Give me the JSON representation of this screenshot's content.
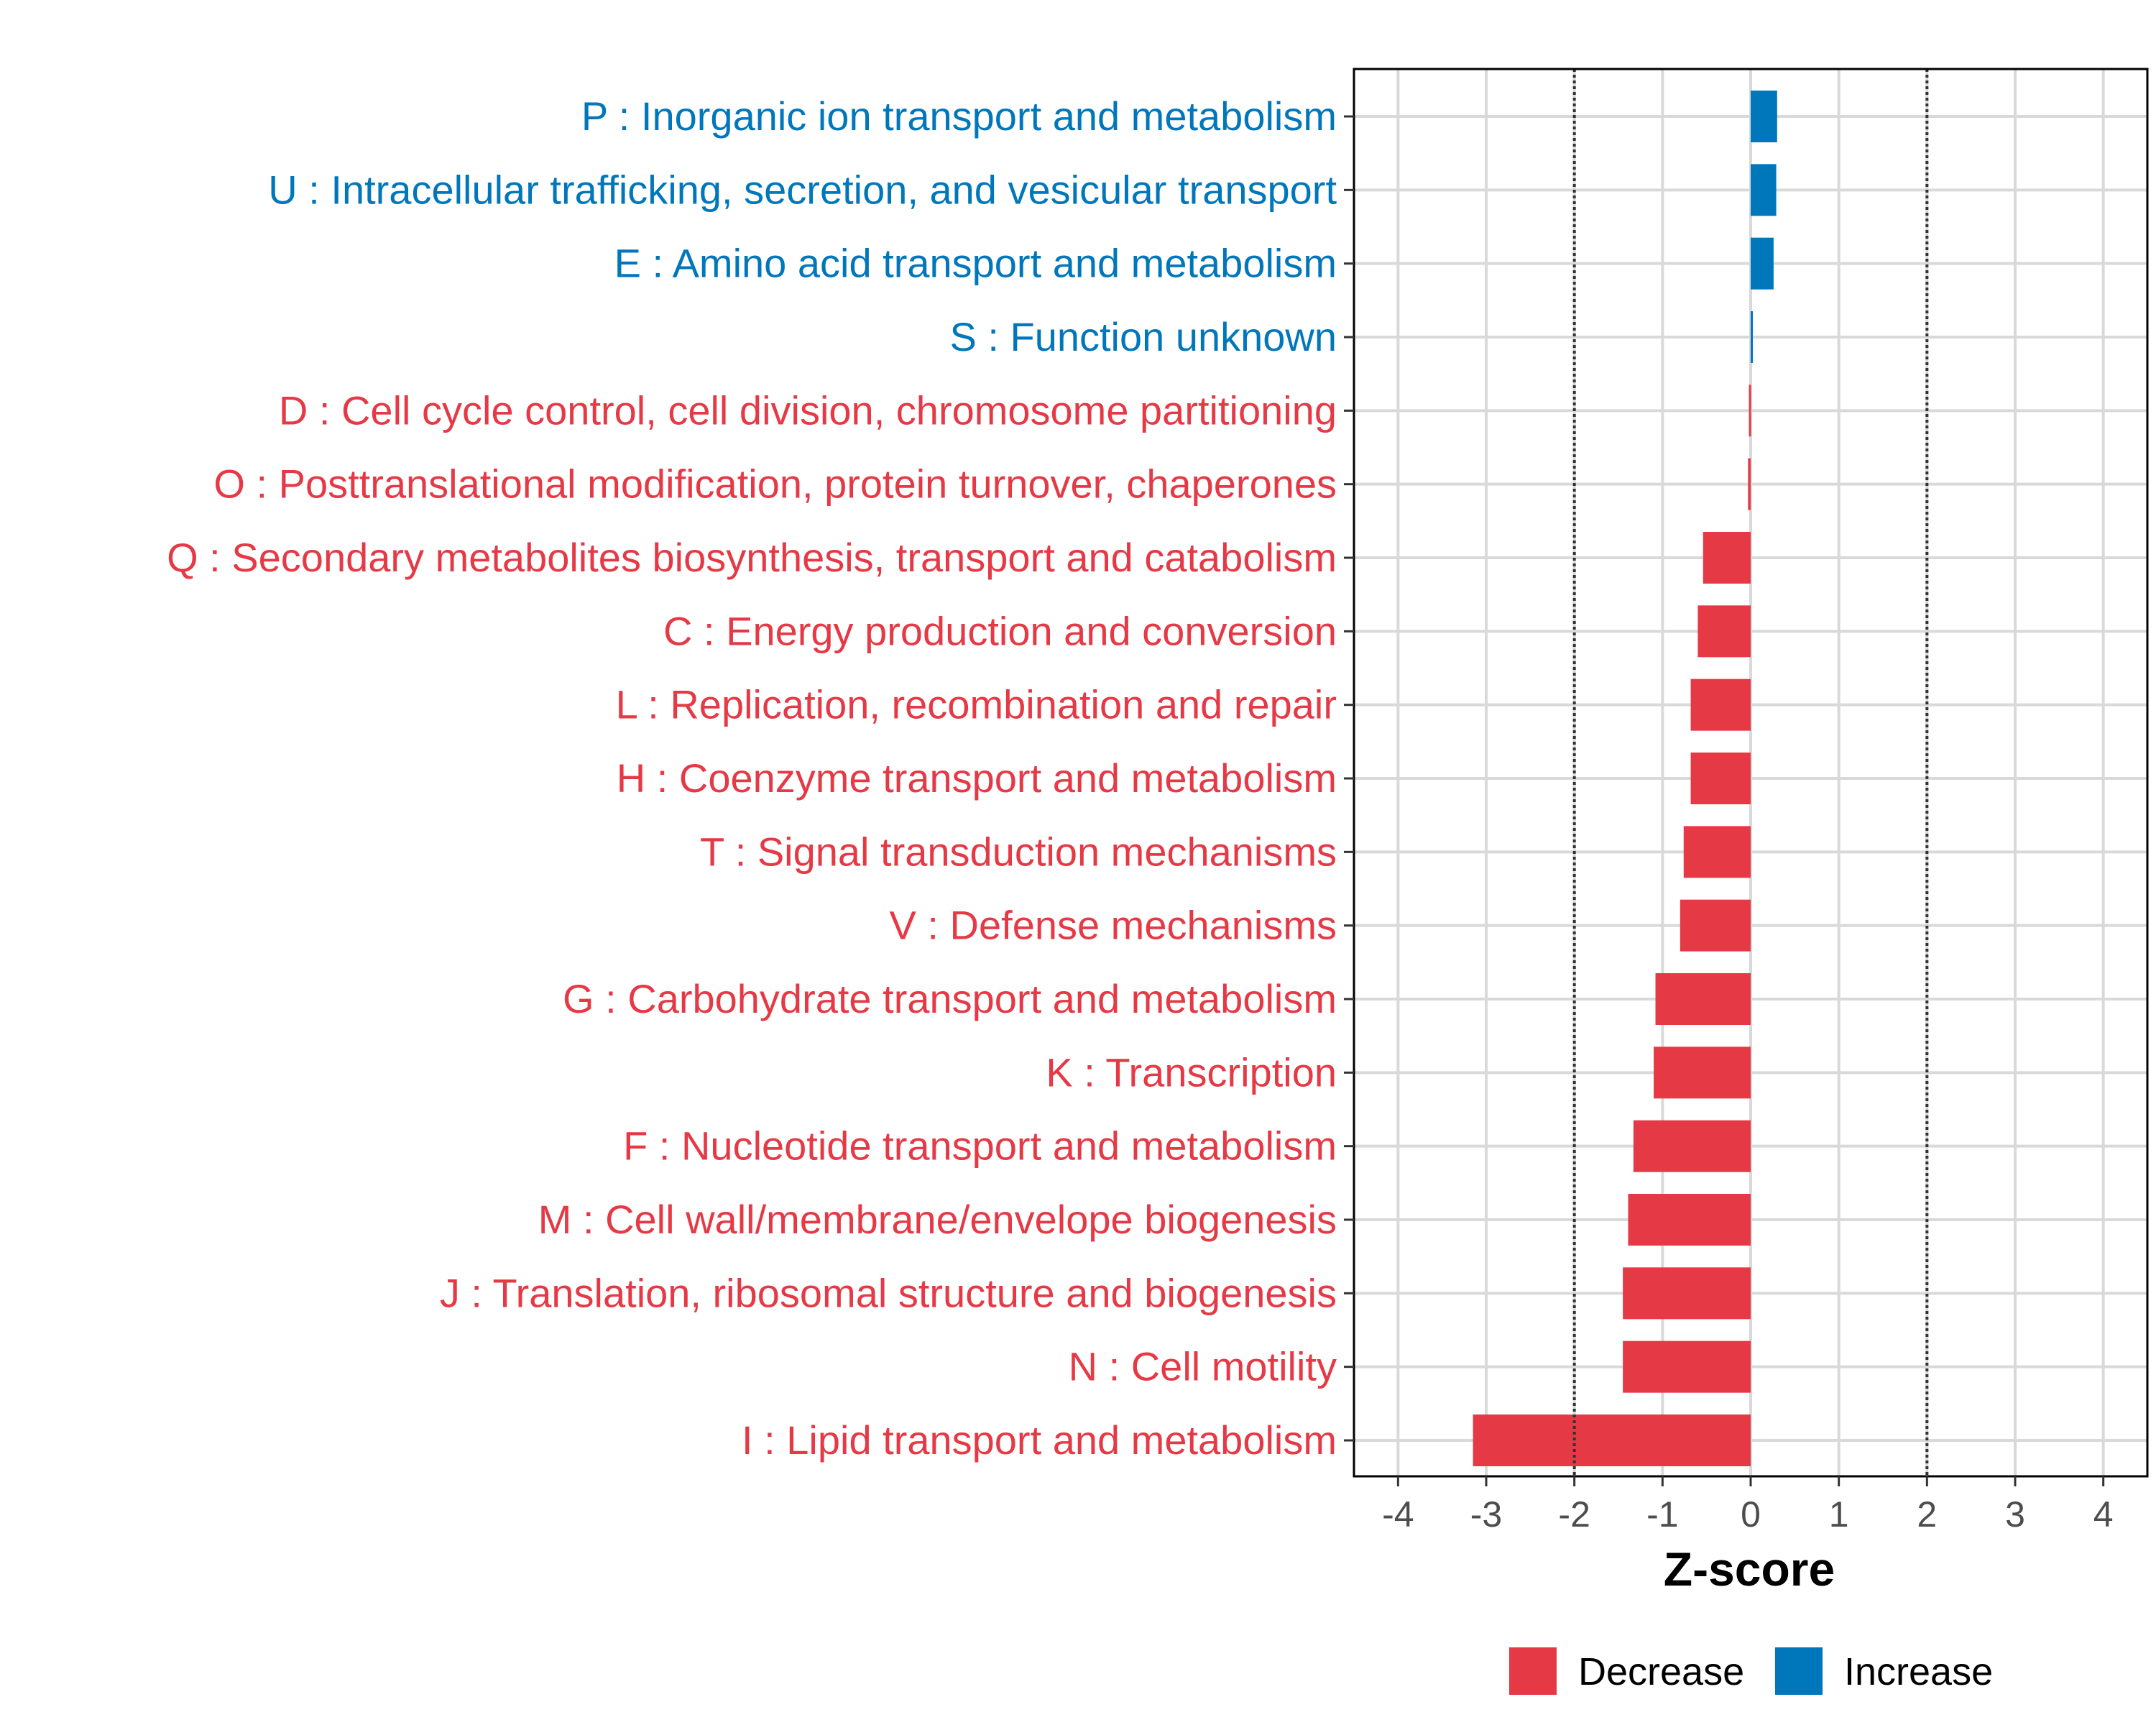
{
  "chart_data": {
    "type": "bar",
    "orientation": "horizontal",
    "xlabel": "Z-score",
    "xlim": [
      -4.5,
      4.5
    ],
    "xticks": [
      -4,
      -3,
      -2,
      -1,
      0,
      1,
      2,
      3,
      4
    ],
    "threshold_lines": [
      -2,
      2
    ],
    "grid": true,
    "legend_position": "bottom",
    "colors": {
      "Decrease": "#e63946",
      "Increase": "#0077bb"
    },
    "legend": [
      {
        "name": "Decrease",
        "color": "#e63946"
      },
      {
        "name": "Increase",
        "color": "#0077bb"
      }
    ],
    "categories": [
      {
        "label": "P : Inorganic ion transport and metabolism",
        "value": 0.3,
        "direction": "Increase"
      },
      {
        "label": "U : Intracellular trafficking, secretion, and vesicular transport",
        "value": 0.29,
        "direction": "Increase"
      },
      {
        "label": "E : Amino acid transport and metabolism",
        "value": 0.26,
        "direction": "Increase"
      },
      {
        "label": "S : Function unknown",
        "value": 0.02,
        "direction": "Increase"
      },
      {
        "label": "D : Cell cycle control, cell division, chromosome partitioning",
        "value": -0.02,
        "direction": "Decrease"
      },
      {
        "label": "O : Posttranslational modification, protein turnover, chaperones",
        "value": -0.03,
        "direction": "Decrease"
      },
      {
        "label": "Q : Secondary metabolites biosynthesis, transport and catabolism",
        "value": -0.54,
        "direction": "Decrease"
      },
      {
        "label": "C : Energy production and conversion",
        "value": -0.6,
        "direction": "Decrease"
      },
      {
        "label": "L : Replication, recombination and repair",
        "value": -0.68,
        "direction": "Decrease"
      },
      {
        "label": "H : Coenzyme transport and metabolism",
        "value": -0.68,
        "direction": "Decrease"
      },
      {
        "label": "T : Signal transduction mechanisms",
        "value": -0.76,
        "direction": "Decrease"
      },
      {
        "label": "V : Defense mechanisms",
        "value": -0.8,
        "direction": "Decrease"
      },
      {
        "label": "G : Carbohydrate transport and metabolism",
        "value": -1.08,
        "direction": "Decrease"
      },
      {
        "label": "K : Transcription",
        "value": -1.1,
        "direction": "Decrease"
      },
      {
        "label": "F : Nucleotide transport and metabolism",
        "value": -1.33,
        "direction": "Decrease"
      },
      {
        "label": "M : Cell wall/membrane/envelope biogenesis",
        "value": -1.39,
        "direction": "Decrease"
      },
      {
        "label": "J : Translation, ribosomal structure and biogenesis",
        "value": -1.45,
        "direction": "Decrease"
      },
      {
        "label": "N : Cell motility",
        "value": -1.45,
        "direction": "Decrease"
      },
      {
        "label": "I : Lipid transport and metabolism",
        "value": -3.15,
        "direction": "Decrease"
      }
    ]
  }
}
